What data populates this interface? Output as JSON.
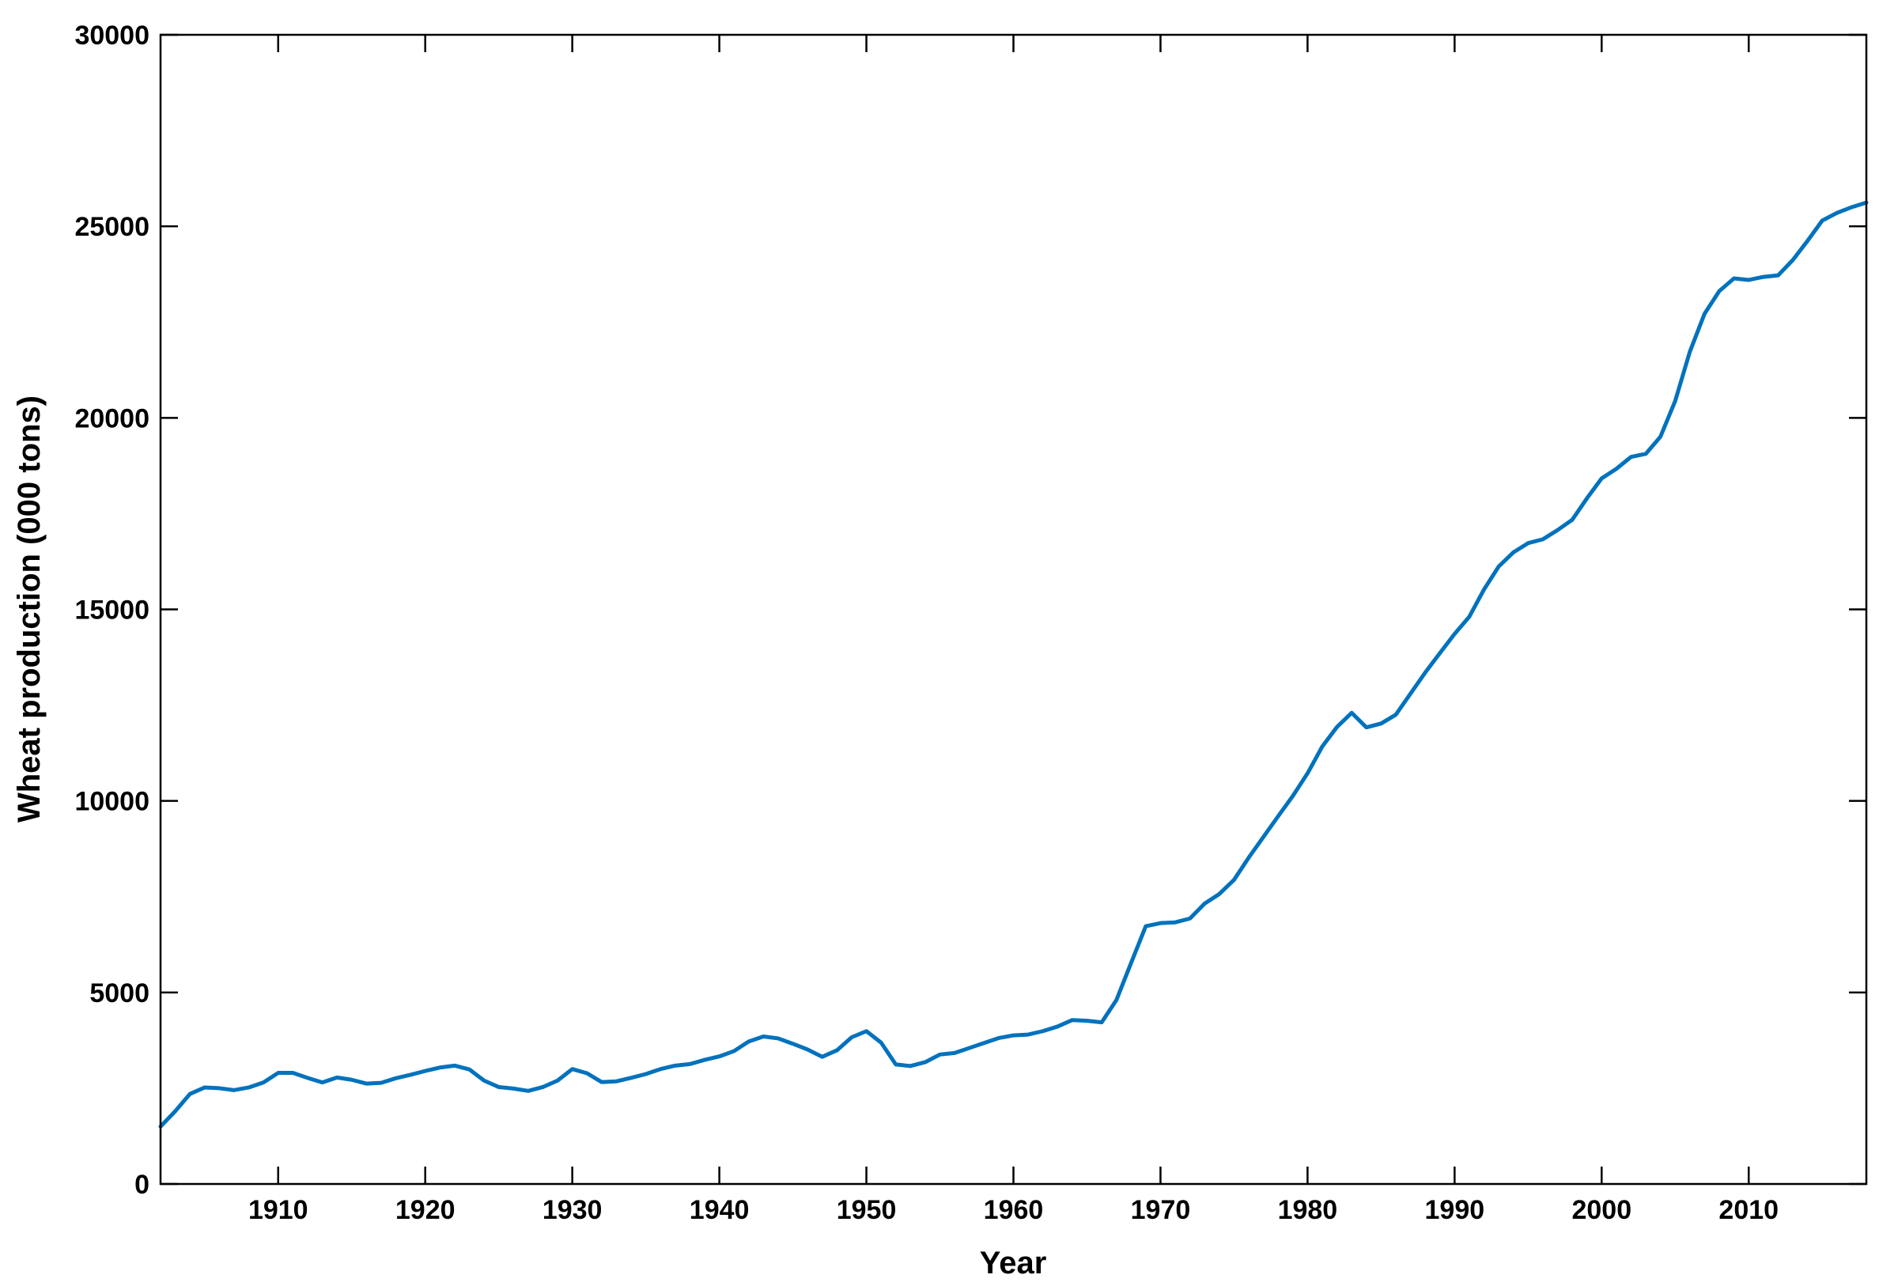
{
  "chart_data": {
    "type": "line",
    "title": "",
    "xlabel": "Year",
    "ylabel": "Wheat production (000 tons)",
    "xlim": [
      1902,
      2018
    ],
    "ylim": [
      0,
      30000
    ],
    "xticks": [
      1910,
      1920,
      1930,
      1940,
      1950,
      1960,
      1970,
      1980,
      1990,
      2000,
      2010
    ],
    "yticks": [
      0,
      5000,
      10000,
      15000,
      20000,
      25000,
      30000
    ],
    "grid": false,
    "legend": "none",
    "line_color": "#0072BD",
    "series": [
      {
        "x": [
          1902,
          1903,
          1904,
          1905,
          1906,
          1907,
          1908,
          1909,
          1910,
          1911,
          1912,
          1913,
          1914,
          1915,
          1916,
          1917,
          1918,
          1919,
          1920,
          1921,
          1922,
          1923,
          1924,
          1925,
          1926,
          1927,
          1928,
          1929,
          1930,
          1931,
          1932,
          1933,
          1934,
          1935,
          1936,
          1937,
          1938,
          1939,
          1940,
          1941,
          1942,
          1943,
          1944,
          1945,
          1946,
          1947,
          1948,
          1949,
          1950,
          1951,
          1952,
          1953,
          1954,
          1955,
          1956,
          1957,
          1958,
          1959,
          1960,
          1961,
          1962,
          1963,
          1964,
          1965,
          1966,
          1967,
          1968,
          1969,
          1970,
          1971,
          1972,
          1973,
          1974,
          1975,
          1976,
          1977,
          1978,
          1979,
          1980,
          1981,
          1982,
          1983,
          1984,
          1985,
          1986,
          1987,
          1988,
          1989,
          1990,
          1991,
          1992,
          1993,
          1994,
          1995,
          1996,
          1997,
          1998,
          1999,
          2000,
          2001,
          2002,
          2003,
          2004,
          2005,
          2006,
          2007,
          2008,
          2009,
          2010,
          2011,
          2012,
          2013,
          2014,
          2015,
          2016,
          2017,
          2018
        ],
        "values": [
          1500,
          1900,
          2350,
          2520,
          2500,
          2450,
          2520,
          2650,
          2900,
          2900,
          2770,
          2650,
          2780,
          2720,
          2620,
          2640,
          2760,
          2850,
          2950,
          3040,
          3090,
          2990,
          2700,
          2530,
          2490,
          2430,
          2530,
          2700,
          3000,
          2890,
          2660,
          2680,
          2770,
          2870,
          3000,
          3090,
          3130,
          3240,
          3330,
          3470,
          3720,
          3850,
          3800,
          3660,
          3510,
          3320,
          3490,
          3830,
          3990,
          3690,
          3120,
          3080,
          3180,
          3380,
          3420,
          3550,
          3680,
          3810,
          3880,
          3900,
          3990,
          4110,
          4280,
          4260,
          4220,
          4800,
          5770,
          6730,
          6810,
          6830,
          6930,
          7320,
          7570,
          7940,
          8520,
          9060,
          9600,
          10130,
          10720,
          11420,
          11930,
          12300,
          11920,
          12020,
          12250,
          12800,
          13350,
          13860,
          14360,
          14810,
          15520,
          16120,
          16490,
          16730,
          16830,
          17070,
          17340,
          17900,
          18420,
          18670,
          18980,
          19060,
          19510,
          20440,
          21730,
          22720,
          23310,
          23640,
          23600,
          23680,
          23720,
          24120,
          24620,
          25150,
          25350,
          25500,
          25620
        ]
      }
    ]
  }
}
